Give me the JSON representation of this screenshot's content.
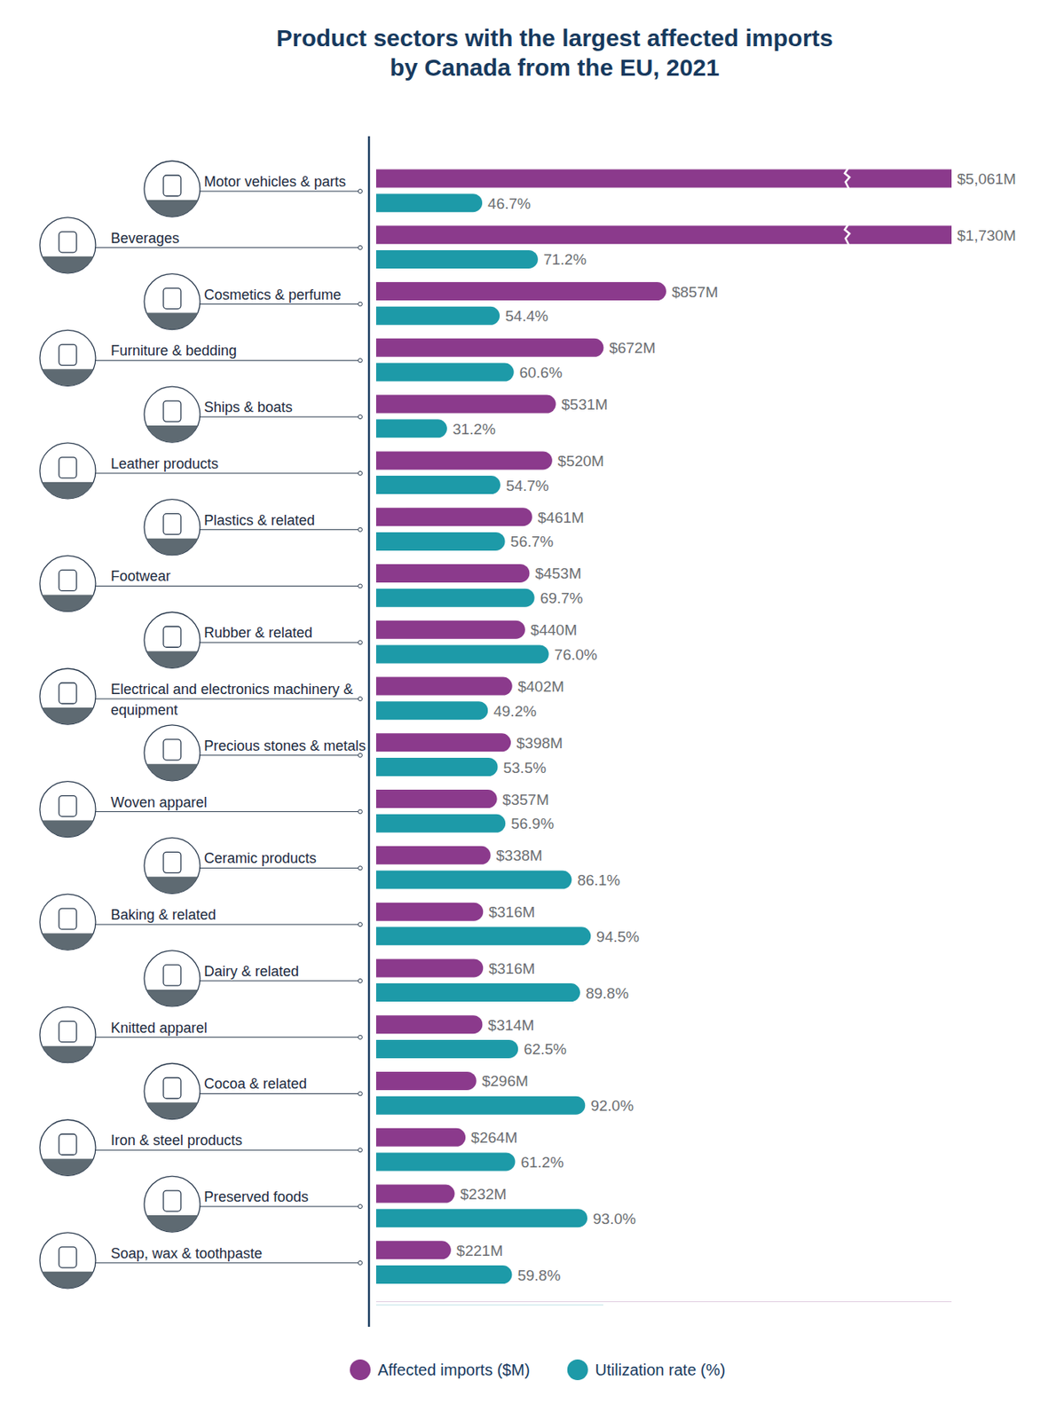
{
  "chart_data": {
    "type": "bar",
    "orientation": "horizontal",
    "title": "Product sectors with the largest affected imports\nby Canada from the EU, 2021",
    "categories": [
      "Motor vehicles & parts",
      "Beverages",
      "Cosmetics & perfume",
      "Furniture & bedding",
      "Ships & boats",
      "Leather products",
      "Plastics & related",
      "Footwear",
      "Rubber & related",
      "Electrical and electronics machinery & equipment",
      "Precious stones & metals",
      "Woven apparel",
      "Ceramic products",
      "Baking & related",
      "Dairy & related",
      "Knitted apparel",
      "Cocoa & related",
      "Iron & steel products",
      "Preserved foods",
      "Soap, wax & toothpaste"
    ],
    "series": [
      {
        "name": "Affected imports ($M)",
        "color": "#8b3a8c",
        "values": [
          5061,
          1730,
          857,
          672,
          531,
          520,
          461,
          453,
          440,
          402,
          398,
          357,
          338,
          316,
          316,
          314,
          296,
          264,
          232,
          221
        ],
        "value_labels": [
          "$5,061M",
          "$1,730M",
          "$857M",
          "$672M",
          "$531M",
          "$520M",
          "$461M",
          "$453M",
          "$440M",
          "$402M",
          "$398M",
          "$357M",
          "$338M",
          "$316M",
          "$316M",
          "$314M",
          "$296M",
          "$264M",
          "$232M",
          "$221M"
        ]
      },
      {
        "name": "Utilization rate (%)",
        "color": "#1d9aa8",
        "axis": "y2",
        "values": [
          46.7,
          71.2,
          54.4,
          60.6,
          31.2,
          54.7,
          56.7,
          69.7,
          76.0,
          49.2,
          53.5,
          56.9,
          86.1,
          94.5,
          89.8,
          62.5,
          92.0,
          61.2,
          93.0,
          59.8
        ],
        "value_labels": [
          "46.7%",
          "71.2%",
          "54.4%",
          "60.6%",
          "31.2%",
          "54.7%",
          "56.7%",
          "69.7%",
          "76.0%",
          "49.2%",
          "53.5%",
          "56.9%",
          "86.1%",
          "94.5%",
          "89.8%",
          "62.5%",
          "92.0%",
          "61.2%",
          "93.0%",
          "59.8%"
        ]
      }
    ],
    "ylim": [
      0,
      1700
    ],
    "y2lim": [
      0,
      100
    ],
    "data_labels": true,
    "tick_labels": false,
    "legend": "bottom",
    "grid": false
  }
}
